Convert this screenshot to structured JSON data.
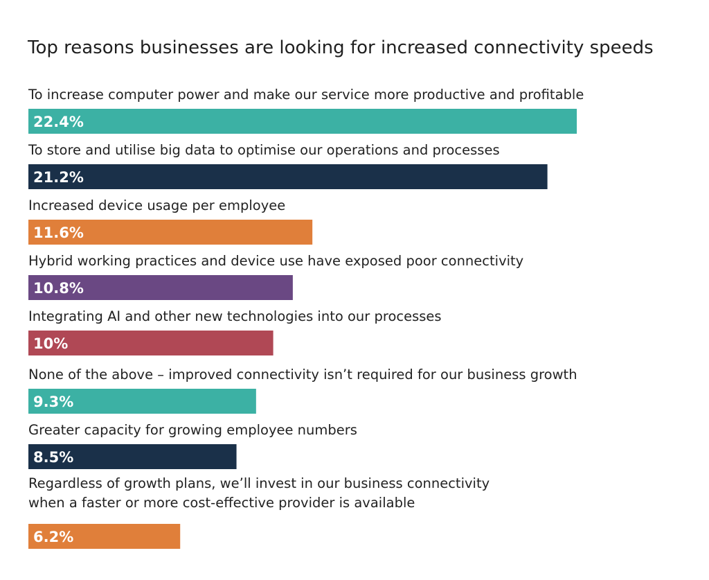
{
  "chart_data": {
    "type": "bar",
    "orientation": "horizontal",
    "title": "Top reasons businesses are looking for increased connectivity speeds",
    "categories": [
      "To increase computer power and make our service more productive and profitable",
      "To store and utilise big data to optimise our operations and processes",
      "Increased device usage per employee",
      "Hybrid working practices and device use have exposed poor connectivity",
      "Integrating AI and other new technologies into our processes",
      "None of the above – improved connectivity isn’t required for our business growth",
      "Greater capacity for growing employee numbers",
      "Regardless of growth plans, we’ll invest in our business connectivity\nwhen a faster or more cost-effective provider is available"
    ],
    "values": [
      22.4,
      21.2,
      11.6,
      10.8,
      10,
      9.3,
      8.5,
      6.2
    ],
    "data_labels": [
      "22.4%",
      "21.2%",
      "11.6%",
      "10.8%",
      "10%",
      "9.3%",
      "8.5%",
      "6.2%"
    ],
    "unit": "%",
    "colors": [
      "#3cb1a4",
      "#1a3049",
      "#e07f3a",
      "#6a4883",
      "#b04855",
      "#3cb1a4",
      "#1a3049",
      "#e07f3a"
    ],
    "grid": false,
    "legend": "none"
  }
}
